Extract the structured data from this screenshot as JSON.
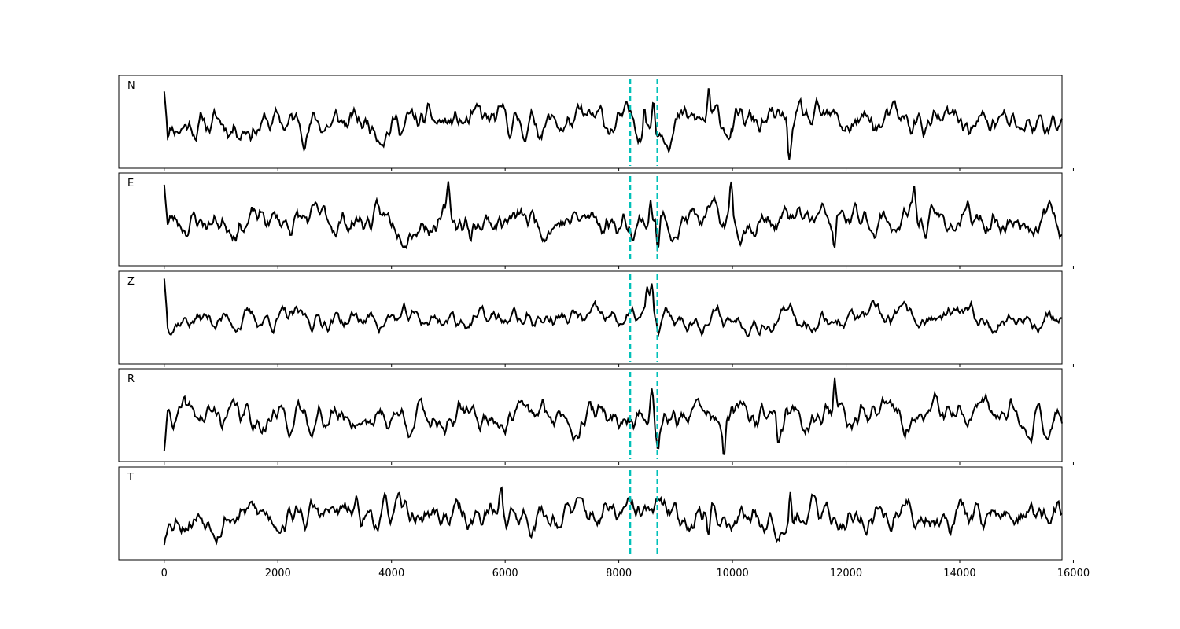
{
  "chart_data": {
    "type": "line",
    "title": "",
    "xlabel": "",
    "ylabel": "",
    "xlim": [
      -800,
      15800
    ],
    "x_ticks": [
      0,
      2000,
      4000,
      6000,
      8000,
      10000,
      12000,
      14000,
      16000
    ],
    "x_tick_labels": [
      "0",
      "2000",
      "4000",
      "6000",
      "8000",
      "10000",
      "12000",
      "14000",
      "16000"
    ],
    "sample_count": 15800,
    "grid": false,
    "legend": "none",
    "line_color": "#000000",
    "marker_color": "#00c0b8",
    "markers": [
      8200,
      8680
    ],
    "panels": [
      {
        "label": "N",
        "start_value": 0.75,
        "peaks": [
          [
            8450,
            0.7
          ],
          [
            8610,
            0.6
          ],
          [
            9580,
            0.75
          ],
          [
            11000,
            -0.9
          ]
        ],
        "amplitude": 0.32,
        "seed": 11
      },
      {
        "label": "E",
        "start_value": 0.85,
        "peaks": [
          [
            5000,
            0.55
          ],
          [
            5400,
            -0.6
          ],
          [
            8560,
            0.65
          ],
          [
            8690,
            -0.75
          ],
          [
            9980,
            0.85
          ],
          [
            11800,
            -0.7
          ],
          [
            13200,
            0.55
          ]
        ],
        "amplitude": 0.3,
        "seed": 23
      },
      {
        "label": "Z",
        "start_value": 0.95,
        "peaks": [
          [
            8500,
            0.6
          ],
          [
            8580,
            0.7
          ],
          [
            8700,
            -0.55
          ]
        ],
        "amplitude": 0.22,
        "seed": 37
      },
      {
        "label": "R",
        "start_value": -0.8,
        "peaks": [
          [
            8590,
            0.7
          ],
          [
            8690,
            -0.65
          ],
          [
            9850,
            -0.85
          ],
          [
            11800,
            0.75
          ],
          [
            10800,
            -0.6
          ]
        ],
        "amplitude": 0.3,
        "seed": 41
      },
      {
        "label": "T",
        "start_value": -0.7,
        "peaks": [
          [
            5930,
            0.65
          ],
          [
            9580,
            -0.75
          ],
          [
            11020,
            0.9
          ]
        ],
        "amplitude": 0.32,
        "seed": 53
      }
    ]
  }
}
